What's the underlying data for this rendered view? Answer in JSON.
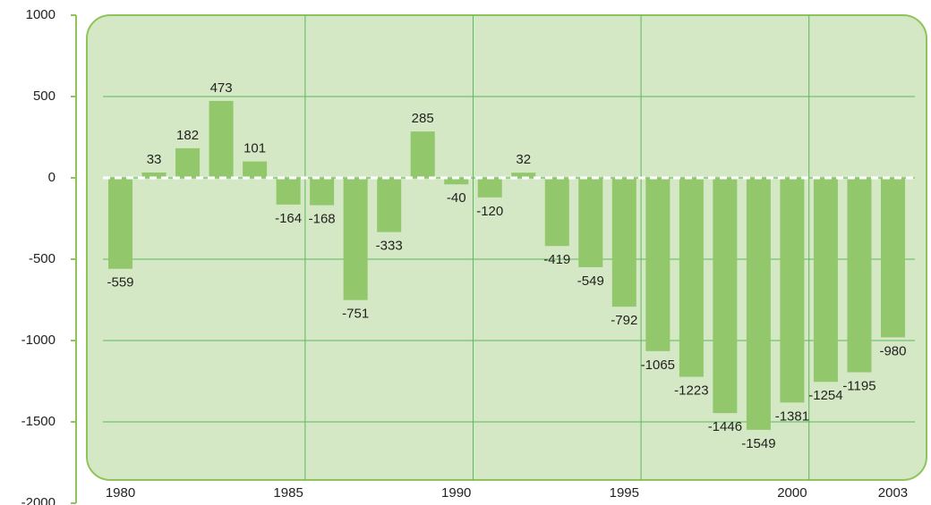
{
  "chart_data": {
    "type": "bar",
    "x": [
      1980,
      1981,
      1982,
      1983,
      1984,
      1985,
      1986,
      1987,
      1988,
      1989,
      1990,
      1991,
      1992,
      1993,
      1994,
      1995,
      1996,
      1997,
      1998,
      1999,
      2000,
      2001,
      2002,
      2003
    ],
    "values": [
      -559,
      33,
      182,
      473,
      101,
      -164,
      -168,
      -751,
      -333,
      285,
      -40,
      -120,
      32,
      -419,
      -549,
      -792,
      -1065,
      -1223,
      -1446,
      -1549,
      -1381,
      -1254,
      -1195,
      -980
    ],
    "color": "#92c86b",
    "xlim": [
      1979,
      2004
    ],
    "xticks": [
      1980,
      1985,
      1990,
      1995,
      2000,
      2003
    ],
    "ylim": [
      -2000,
      1000
    ],
    "yticks": [
      -2000,
      -1500,
      -1000,
      -500,
      0,
      500,
      1000
    ],
    "grid": true
  }
}
